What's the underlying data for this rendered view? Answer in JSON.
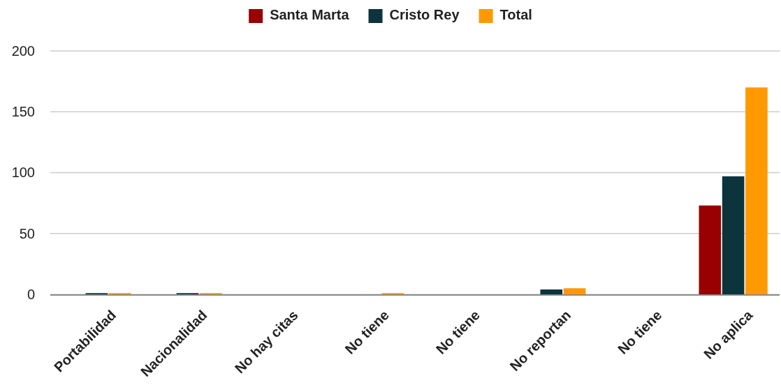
{
  "chart_data": {
    "type": "bar",
    "categories": [
      "Portabilidad",
      "Nacionalidad",
      "No hay citas",
      "No tiene",
      "No tiene",
      "No reportan",
      "No tiene",
      "No aplica"
    ],
    "series": [
      {
        "name": "Santa Marta",
        "color": "#990000",
        "values": [
          0,
          0,
          0,
          0,
          0,
          0,
          0,
          73
        ]
      },
      {
        "name": "Cristo Rey",
        "color": "#0c343d",
        "values": [
          1,
          1,
          0,
          0,
          0,
          4,
          0,
          97
        ]
      },
      {
        "name": "Total",
        "color": "#ff9900",
        "values": [
          1,
          1,
          0,
          1,
          0,
          5,
          0,
          170
        ]
      }
    ],
    "ylim": [
      0,
      200
    ],
    "yticks": [
      0,
      50,
      100,
      150,
      200
    ],
    "grid": "y",
    "legend": "top"
  }
}
